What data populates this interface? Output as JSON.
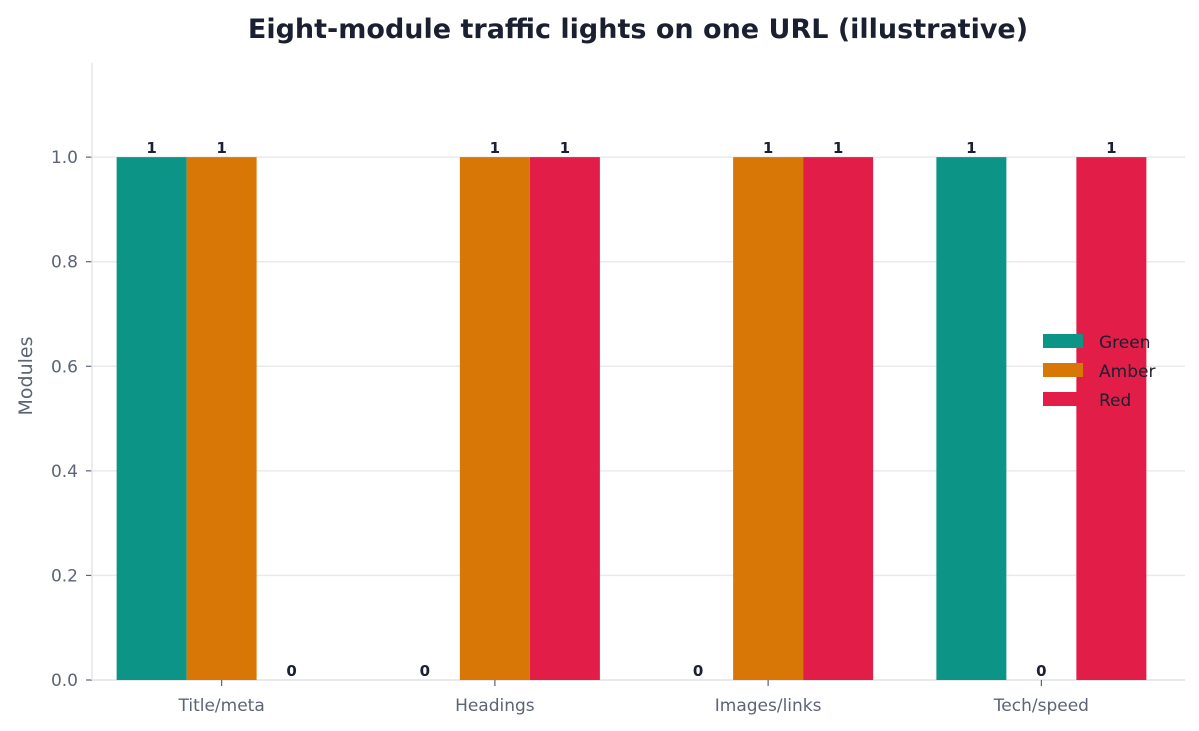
{
  "chart_data": {
    "type": "bar",
    "title": "Eight-module traffic lights on one URL (illustrative)",
    "xlabel": "",
    "ylabel": "Modules",
    "categories": [
      "Title/meta",
      "Headings",
      "Images/links",
      "Tech/speed"
    ],
    "series": [
      {
        "name": "Green",
        "color": "#0c9486",
        "values": [
          1,
          0,
          0,
          1
        ]
      },
      {
        "name": "Amber",
        "color": "#d97706",
        "values": [
          1,
          1,
          1,
          0
        ]
      },
      {
        "name": "Red",
        "color": "#e11d48",
        "values": [
          0,
          1,
          1,
          1
        ]
      }
    ],
    "ylim": [
      0,
      1.18
    ],
    "yticks": [
      "0.0",
      "0.2",
      "0.4",
      "0.6",
      "0.8",
      "1.0"
    ],
    "grid": "horizontal",
    "legend_position": "center-right"
  }
}
